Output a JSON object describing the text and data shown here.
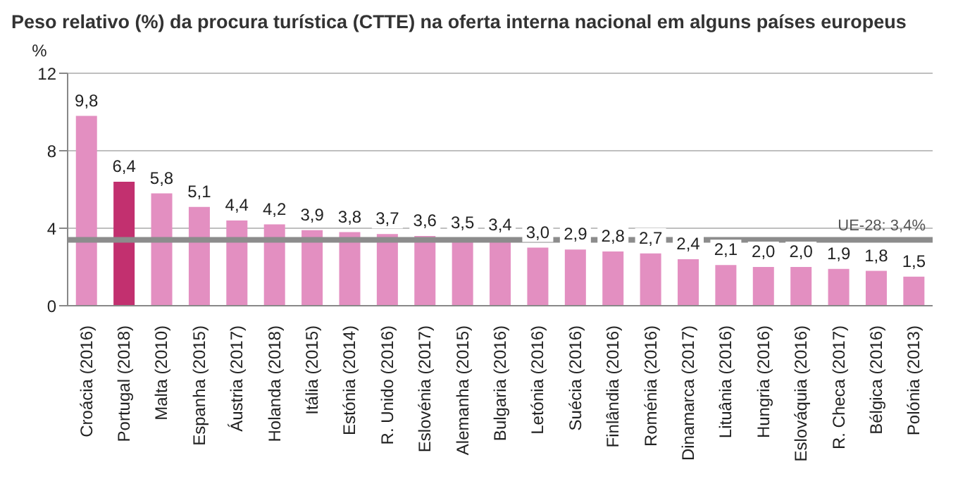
{
  "chart_data": {
    "type": "bar",
    "title": "Peso relativo (%) da procura turística (CTTE) na oferta interna nacional em alguns países europeus",
    "ylabel": "%",
    "categories": [
      "Croácia (2016)",
      "Portugal (2018)",
      "Malta (2010)",
      "Espanha (2015)",
      "Áustria (2017)",
      "Holanda (2018)",
      "Itália (2015)",
      "Estónia (2014)",
      "R. Unido (2016)",
      "Eslovénia (2017)",
      "Alemanha (2015)",
      "Bulgaria (2016)",
      "Letónia (2016)",
      "Suécia (2016)",
      "Finlândia (2016)",
      "Roménia (2016)",
      "Dinamarca (2017)",
      "Lituânia (2016)",
      "Hungria (2016)",
      "Eslováquia (2016)",
      "R. Checa (2017)",
      "Bélgica (2016)",
      "Polónia (2013)"
    ],
    "values": [
      9.8,
      6.4,
      5.8,
      5.1,
      4.4,
      4.2,
      3.9,
      3.8,
      3.7,
      3.6,
      3.5,
      3.4,
      3.0,
      2.9,
      2.8,
      2.7,
      2.4,
      2.1,
      2.0,
      2.0,
      1.9,
      1.8,
      1.5
    ],
    "value_labels": [
      "9,8",
      "6,4",
      "5,8",
      "5,1",
      "4,4",
      "4,2",
      "3,9",
      "3,8",
      "3,7",
      "3,6",
      "3,5",
      "3,4",
      "3,0",
      "2,9",
      "2,8",
      "2,7",
      "2,4",
      "2,1",
      "2,0",
      "2,0",
      "1,9",
      "1,8",
      "1,5"
    ],
    "colors": [
      "#e38fc1",
      "#c2306f",
      "#e38fc1",
      "#e38fc1",
      "#e38fc1",
      "#e38fc1",
      "#e38fc1",
      "#e38fc1",
      "#e38fc1",
      "#e38fc1",
      "#e38fc1",
      "#e38fc1",
      "#e38fc1",
      "#e38fc1",
      "#e38fc1",
      "#e38fc1",
      "#e38fc1",
      "#e38fc1",
      "#e38fc1",
      "#e38fc1",
      "#e38fc1",
      "#e38fc1",
      "#e38fc1"
    ],
    "ylim": [
      0,
      12
    ],
    "yticks": [
      0,
      4,
      8,
      12
    ],
    "grid": "y",
    "ref_lines": [
      {
        "axis": "y",
        "value": 3.4,
        "label": "UE-28: 3,4%",
        "color": "#8c8c8c"
      }
    ]
  }
}
